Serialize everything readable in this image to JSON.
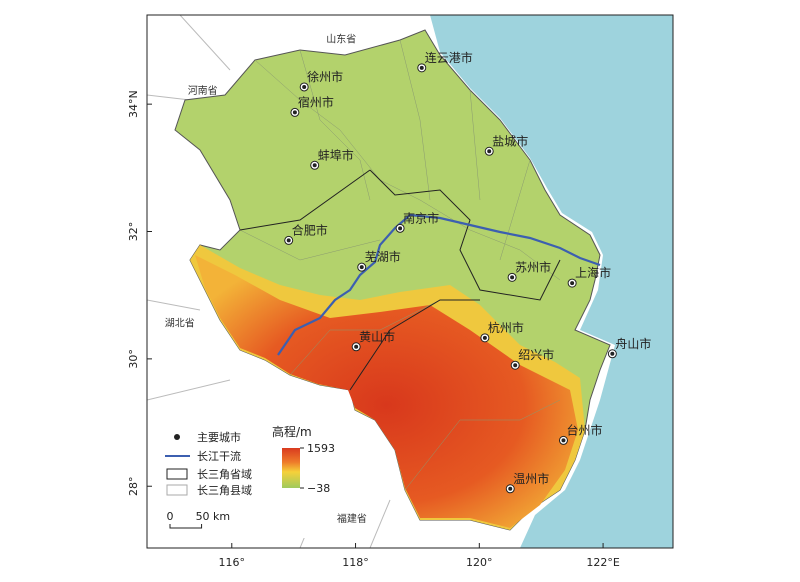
{
  "map": {
    "xlim": [
      114.63,
      123.13
    ],
    "ylim": [
      27.03,
      35.4
    ],
    "xticks": [
      {
        "value": 116,
        "label": "116°"
      },
      {
        "value": 118,
        "label": "118°"
      },
      {
        "value": 120,
        "label": "120°"
      },
      {
        "value": 122,
        "label": "122°E"
      }
    ],
    "yticks": [
      {
        "value": 28,
        "label": "28°"
      },
      {
        "value": 30,
        "label": "30°"
      },
      {
        "value": 32,
        "label": "32°"
      },
      {
        "value": 34,
        "label": "34°N"
      }
    ],
    "provinces": [
      {
        "name": "山东省",
        "lon": 117.77,
        "lat": 34.97
      },
      {
        "name": "河南省",
        "lon": 115.53,
        "lat": 34.16
      },
      {
        "name": "湖北省",
        "lon": 115.16,
        "lat": 30.51
      },
      {
        "name": "福建省",
        "lon": 117.94,
        "lat": 27.44
      }
    ],
    "cities": [
      {
        "name": "连云港市",
        "lon": 119.07,
        "lat": 34.57
      },
      {
        "name": "徐州市",
        "lon": 117.17,
        "lat": 34.27
      },
      {
        "name": "宿州市",
        "lon": 117.02,
        "lat": 33.87
      },
      {
        "name": "盐城市",
        "lon": 120.16,
        "lat": 33.26
      },
      {
        "name": "蚌埠市",
        "lon": 117.34,
        "lat": 33.04
      },
      {
        "name": "南京市",
        "lon": 118.72,
        "lat": 32.05
      },
      {
        "name": "合肥市",
        "lon": 116.92,
        "lat": 31.86
      },
      {
        "name": "芜湖市",
        "lon": 118.1,
        "lat": 31.44
      },
      {
        "name": "苏州市",
        "lon": 120.53,
        "lat": 31.28
      },
      {
        "name": "上海市",
        "lon": 121.5,
        "lat": 31.19
      },
      {
        "name": "黄山市",
        "lon": 118.01,
        "lat": 30.19
      },
      {
        "name": "杭州市",
        "lon": 120.09,
        "lat": 30.33
      },
      {
        "name": "绍兴市",
        "lon": 120.58,
        "lat": 29.9
      },
      {
        "name": "舟山市",
        "lon": 122.15,
        "lat": 30.08
      },
      {
        "name": "台州市",
        "lon": 121.36,
        "lat": 28.72
      },
      {
        "name": "温州市",
        "lon": 120.5,
        "lat": 27.96
      }
    ],
    "legend": {
      "items": [
        "主要城市",
        "长江干流",
        "长三角省域",
        "长三角县域"
      ],
      "elevation_title": "高程/m",
      "elevation_max": 1593,
      "elevation_min": {
        "value": -38,
        "label": "−38"
      }
    },
    "scale_bar": [
      0,
      {
        "value": 50,
        "label": "50 km"
      }
    ]
  }
}
